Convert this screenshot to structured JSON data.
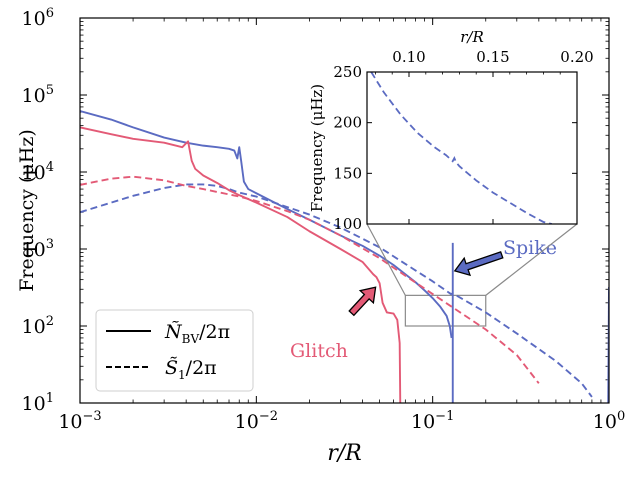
{
  "chart_data": [
    {
      "type": "line",
      "xscale": "log",
      "yscale": "log",
      "xlabel": "r/R",
      "ylabel": "Frequency (μHz)",
      "xlim": [
        0.001,
        1.0
      ],
      "ylim": [
        10,
        1000000
      ],
      "x_ticks": [
        0.001,
        0.01,
        0.1,
        1
      ],
      "x_tick_labels": [
        {
          "base": "10",
          "exp": "−3"
        },
        {
          "base": "10",
          "exp": "−2"
        },
        {
          "base": "10",
          "exp": "−1"
        },
        {
          "base": "10",
          "exp": "0"
        }
      ],
      "y_ticks": [
        10,
        100,
        1000,
        10000,
        100000,
        1000000
      ],
      "y_tick_labels": [
        {
          "base": "10",
          "exp": "1"
        },
        {
          "base": "10",
          "exp": "2"
        },
        {
          "base": "10",
          "exp": "3"
        },
        {
          "base": "10",
          "exp": "4"
        },
        {
          "base": "10",
          "exp": "5"
        },
        {
          "base": "10",
          "exp": "6"
        }
      ],
      "legend": {
        "placement": "lower-left",
        "entries": [
          {
            "style": "solid",
            "label_main": "Ñ",
            "label_sub": "BV",
            "label_tail": "/2π"
          },
          {
            "style": "dashed",
            "label_main": "S̃",
            "label_sub": "1",
            "label_tail": "/2π"
          }
        ]
      },
      "colors": {
        "blue": "#5b6bc2",
        "red": "#e35a76"
      },
      "series": [
        {
          "color": "blue",
          "style": "solid",
          "points": [
            [
              0.001,
              62000
            ],
            [
              0.0015,
              48000
            ],
            [
              0.002,
              38000
            ],
            [
              0.003,
              28000
            ],
            [
              0.004,
              24000
            ],
            [
              0.005,
              22000
            ],
            [
              0.006,
              21000
            ],
            [
              0.007,
              20000
            ],
            [
              0.0075,
              19000
            ],
            [
              0.0078,
              15000
            ],
            [
              0.008,
              21000
            ],
            [
              0.0082,
              14000
            ],
            [
              0.0085,
              7500
            ],
            [
              0.009,
              6000
            ],
            [
              0.01,
              5300
            ],
            [
              0.015,
              3300
            ],
            [
              0.02,
              2400
            ],
            [
              0.03,
              1500
            ],
            [
              0.04,
              1100
            ],
            [
              0.05,
              820
            ],
            [
              0.06,
              620
            ],
            [
              0.07,
              470
            ],
            [
              0.08,
              370
            ],
            [
              0.09,
              290
            ],
            [
              0.1,
              230
            ],
            [
              0.11,
              180
            ],
            [
              0.12,
              135
            ],
            [
              0.125,
              100
            ],
            [
              0.128,
              70
            ]
          ]
        },
        {
          "color": "blue",
          "style": "solid",
          "note": "spike",
          "points": [
            [
              0.13,
              10
            ],
            [
              0.13,
              1200
            ]
          ]
        },
        {
          "color": "blue",
          "style": "solid",
          "points": [
            [
              0.99,
              10
            ],
            [
              1.0,
              320
            ]
          ]
        },
        {
          "color": "blue",
          "style": "dashed",
          "points": [
            [
              0.001,
              3000
            ],
            [
              0.0015,
              4000
            ],
            [
              0.002,
              4900
            ],
            [
              0.003,
              6200
            ],
            [
              0.004,
              6900
            ],
            [
              0.005,
              6900
            ],
            [
              0.006,
              6600
            ],
            [
              0.007,
              6000
            ],
            [
              0.008,
              5400
            ],
            [
              0.01,
              4800
            ],
            [
              0.015,
              3500
            ],
            [
              0.02,
              2800
            ],
            [
              0.03,
              1900
            ],
            [
              0.05,
              1050
            ],
            [
              0.07,
              640
            ],
            [
              0.1,
              380
            ],
            [
              0.127,
              260
            ],
            [
              0.13,
              265
            ],
            [
              0.2,
              150
            ],
            [
              0.3,
              80
            ],
            [
              0.5,
              35
            ],
            [
              0.7,
              18
            ],
            [
              0.8,
              12
            ]
          ]
        },
        {
          "color": "red",
          "style": "solid",
          "points": [
            [
              0.001,
              38000
            ],
            [
              0.0015,
              31000
            ],
            [
              0.002,
              27000
            ],
            [
              0.003,
              24000
            ],
            [
              0.0038,
              21000
            ],
            [
              0.0041,
              25000
            ],
            [
              0.0043,
              14000
            ],
            [
              0.0045,
              11000
            ],
            [
              0.005,
              9000
            ],
            [
              0.006,
              7200
            ],
            [
              0.007,
              5800
            ],
            [
              0.008,
              5000
            ],
            [
              0.01,
              4000
            ],
            [
              0.015,
              2600
            ],
            [
              0.02,
              1700
            ],
            [
              0.03,
              1000
            ],
            [
              0.04,
              680
            ],
            [
              0.046,
              470
            ],
            [
              0.048,
              430
            ],
            [
              0.05,
              360
            ],
            [
              0.052,
              200
            ],
            [
              0.055,
              150
            ],
            [
              0.06,
              145
            ],
            [
              0.063,
              120
            ],
            [
              0.065,
              60
            ],
            [
              0.0655,
              10
            ]
          ]
        },
        {
          "color": "red",
          "style": "dashed",
          "points": [
            [
              0.001,
              6800
            ],
            [
              0.0015,
              8200
            ],
            [
              0.002,
              8700
            ],
            [
              0.003,
              7800
            ],
            [
              0.004,
              6600
            ],
            [
              0.005,
              6000
            ],
            [
              0.006,
              5500
            ],
            [
              0.008,
              4800
            ],
            [
              0.01,
              4200
            ],
            [
              0.015,
              3100
            ],
            [
              0.02,
              2400
            ],
            [
              0.03,
              1500
            ],
            [
              0.05,
              760
            ],
            [
              0.07,
              450
            ],
            [
              0.1,
              260
            ],
            [
              0.15,
              140
            ],
            [
              0.2,
              90
            ],
            [
              0.3,
              42
            ],
            [
              0.4,
              18
            ]
          ]
        }
      ],
      "annotations": [
        {
          "text": "Spike",
          "color": "blue",
          "arrow_to": [
            0.13,
            1200
          ]
        },
        {
          "text": "Glitch",
          "color": "red",
          "arrow_to": [
            0.05,
            360
          ]
        }
      ],
      "zoom_box": {
        "xlim": [
          0.07,
          0.2
        ],
        "ylim": [
          100,
          250
        ]
      }
    },
    {
      "type": "line",
      "role": "inset",
      "xscale": "linear",
      "yscale": "linear",
      "xlabel": "r/R",
      "ylabel": "Frequency (μHz)",
      "xlim": [
        0.075,
        0.2
      ],
      "ylim": [
        100,
        250
      ],
      "x_ticks": [
        0.1,
        0.15,
        0.2
      ],
      "x_tick_labels": [
        "0.10",
        "0.15",
        "0.20"
      ],
      "y_ticks": [
        100,
        150,
        200,
        250
      ],
      "y_tick_labels": [
        "100",
        "150",
        "200",
        "250"
      ],
      "series": [
        {
          "color": "blue",
          "style": "dashed",
          "points": [
            [
              0.0775,
              250
            ],
            [
              0.085,
              230
            ],
            [
              0.095,
              208
            ],
            [
              0.105,
              190
            ],
            [
              0.115,
              176
            ],
            [
              0.122,
              168
            ],
            [
              0.126,
              162
            ],
            [
              0.127,
              165
            ],
            [
              0.128,
              161
            ],
            [
              0.13,
              157
            ],
            [
              0.14,
              143
            ],
            [
              0.15,
              131
            ],
            [
              0.16,
              121
            ],
            [
              0.17,
              111
            ],
            [
              0.18,
              102
            ],
            [
              0.185,
              100
            ]
          ]
        }
      ]
    }
  ]
}
